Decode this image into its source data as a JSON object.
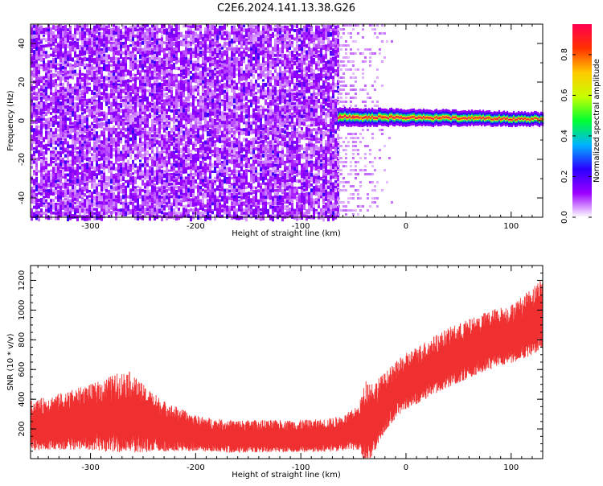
{
  "figure": {
    "title": "C2E6.2024.141.13.38.G26"
  },
  "chart_data": [
    {
      "type": "heatmap",
      "xlabel": "Height of straight line (km)",
      "ylabel": "Frequency (Hz)",
      "xlim": [
        -357,
        130
      ],
      "ylim": [
        -50,
        50
      ],
      "xticks": [
        -300,
        -200,
        -100,
        0,
        100
      ],
      "yticks": [
        -40,
        -20,
        0,
        20,
        40
      ],
      "colorbar": {
        "label": "Normalized spectral amplitude",
        "range": [
          0.0,
          0.95
        ],
        "ticks": [
          0.0,
          0.2,
          0.4,
          0.6,
          0.8
        ],
        "colors": [
          "#ffffff",
          "#9b00ff",
          "#2a00ff",
          "#00b4ff",
          "#00ff30",
          "#c8ff00",
          "#ffc800",
          "#ff3000",
          "#ff0050"
        ]
      },
      "regions": [
        {
          "name": "noise",
          "x_range": [
            -357,
            -65
          ],
          "freq_range": [
            -50,
            50
          ],
          "amplitude": 0.1
        },
        {
          "name": "sparse noise",
          "x_range": [
            -65,
            -10
          ],
          "freq_range": [
            -50,
            50
          ],
          "amplitude": 0.03
        },
        {
          "name": "signal band",
          "x_range": [
            -65,
            130
          ],
          "center_freq": 2,
          "half_width_hz": 4,
          "peak_amplitude": 0.95
        }
      ],
      "grid": false
    },
    {
      "type": "line",
      "xlabel": "Height of straight line (km)",
      "ylabel": "SNR (10 * v/v)",
      "xlim": [
        -357,
        130
      ],
      "ylim": [
        0,
        1300
      ],
      "xticks": [
        -300,
        -200,
        -100,
        0,
        100
      ],
      "yticks": [
        200,
        400,
        600,
        800,
        1000,
        1200
      ],
      "color": "#f03030",
      "series": [
        {
          "x": [
            -357,
            -340,
            -320,
            -300,
            -280,
            -265,
            -250,
            -230,
            -200,
            -170,
            -140,
            -110,
            -80,
            -60,
            -45,
            -38,
            -30,
            -20,
            -10,
            0,
            20,
            40,
            60,
            80,
            100,
            115,
            130
          ],
          "mean": [
            220,
            240,
            260,
            280,
            300,
            320,
            270,
            220,
            170,
            150,
            150,
            150,
            155,
            170,
            210,
            240,
            280,
            380,
            460,
            520,
            600,
            680,
            740,
            800,
            840,
            900,
            980
          ],
          "spread": [
            170,
            180,
            200,
            220,
            260,
            280,
            230,
            170,
            120,
            110,
            110,
            110,
            110,
            120,
            150,
            300,
            240,
            200,
            190,
            190,
            200,
            200,
            200,
            200,
            200,
            220,
            250
          ]
        }
      ],
      "grid": false
    }
  ]
}
